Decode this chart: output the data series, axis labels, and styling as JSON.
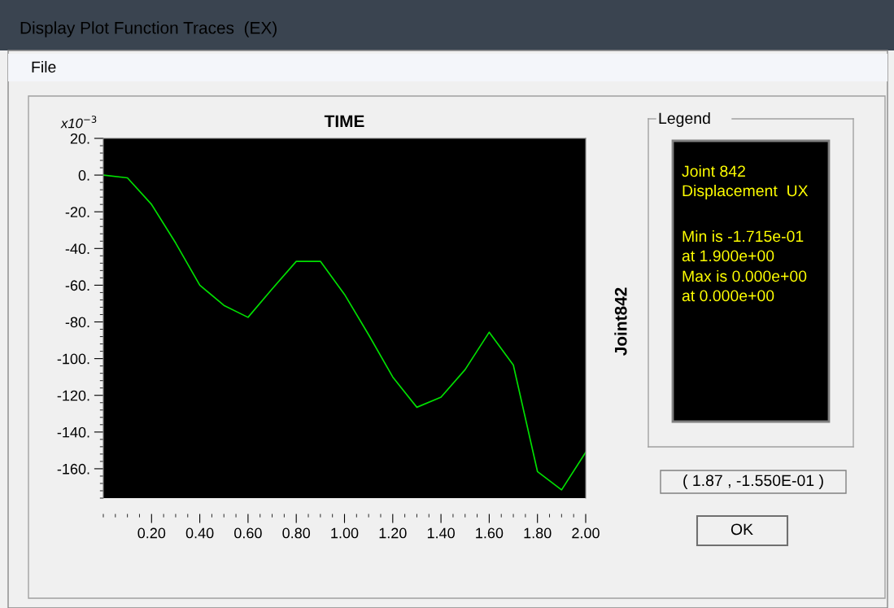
{
  "chart_data": {
    "type": "line",
    "title": "TIME",
    "y2label": "Joint842",
    "legend_title": "Legend",
    "x": [
      0,
      0.1,
      0.2,
      0.3,
      0.4,
      0.5,
      0.6,
      0.7,
      0.8,
      0.9,
      1.0,
      1.1,
      1.2,
      1.3,
      1.4,
      1.5,
      1.6,
      1.7,
      1.8,
      1.9,
      2.0
    ],
    "series": [
      {
        "color": "#00e000",
        "values": [
          0,
          -1.5,
          -16,
          -37,
          -60,
          -71,
          -77.5,
          -62,
          -47,
          -47,
          -65,
          -87,
          -110,
          -126.5,
          -121,
          -106,
          -85.6,
          -103.5,
          -161.5,
          -171.5,
          -151
        ]
      }
    ],
    "xlim": [
      0,
      2.0
    ],
    "ylim": [
      -176,
      20
    ],
    "xticks": [
      {
        "value": 0.2,
        "label": "0.20"
      },
      {
        "value": 0.4,
        "label": "0.40"
      },
      {
        "value": 0.6,
        "label": "0.60"
      },
      {
        "value": 0.8,
        "label": "0.80"
      },
      {
        "value": 1.0,
        "label": "1.00"
      },
      {
        "value": 1.2,
        "label": "1.20"
      },
      {
        "value": 1.4,
        "label": "1.40"
      },
      {
        "value": 1.6,
        "label": "1.60"
      },
      {
        "value": 1.8,
        "label": "1.80"
      },
      {
        "value": 2.0,
        "label": "2.00"
      }
    ],
    "yticks": [
      {
        "value": 20,
        "label": "20."
      },
      {
        "value": 0,
        "label": "0."
      },
      {
        "value": -20,
        "label": "-20."
      },
      {
        "value": -40,
        "label": "-40."
      },
      {
        "value": -60,
        "label": "-60."
      },
      {
        "value": -80,
        "label": "-80."
      },
      {
        "value": -100,
        "label": "-100."
      },
      {
        "value": -120,
        "label": "-120."
      },
      {
        "value": -140,
        "label": "-140."
      },
      {
        "value": -160,
        "label": "-160."
      }
    ],
    "grid": false,
    "marker": "none",
    "line_style": "solid",
    "annotations": [
      "Display Plot Function Traces  (EX)",
      "File",
      "x10$^{−3}$",
      "Joint 842",
      "Displacement  UX",
      "Min is -1.715e-01",
      "at 1.900e+00",
      "Max is 0.000e+00",
      "at 0.000e+00",
      "( 1.87 , -1.550E-01 )",
      "OK"
    ]
  }
}
